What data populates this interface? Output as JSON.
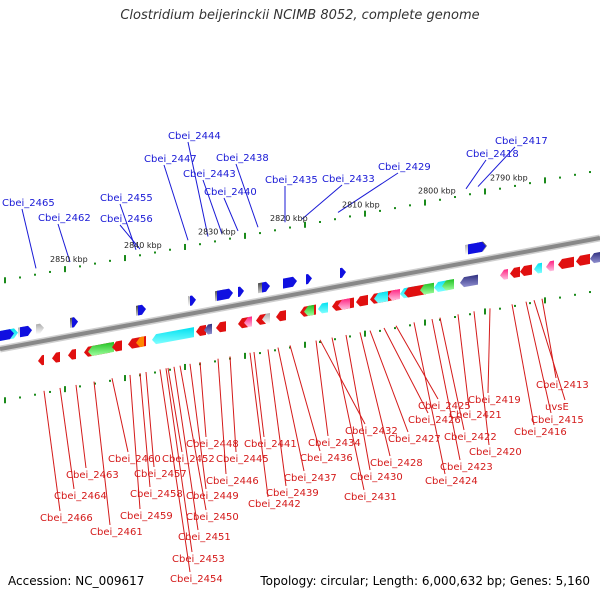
{
  "title": "Clostridium beijerinckii NCIMB 8052, complete genome",
  "footer": {
    "accession": "Accession: NC_009617",
    "topology": "Topology: circular; Length: 6,000,632 bp; Genes: 5,160"
  },
  "kbp_labels": [
    "2790 kbp",
    "2800 kbp",
    "2810 kbp",
    "2820 kbp",
    "2830 kbp",
    "2840 kbp",
    "2850 kbp"
  ],
  "top_labels": [
    "Cbei_2417",
    "Cbei_2418",
    "Cbei_2429",
    "Cbei_2433",
    "Cbei_2435",
    "Cbei_2438",
    "Cbei_2440",
    "Cbei_2443",
    "Cbei_2444",
    "Cbei_2447",
    "Cbei_2455",
    "Cbei_2456",
    "Cbei_2462",
    "Cbei_2465"
  ],
  "bottom_labels": [
    "Cbei_2413",
    "uvsE",
    "Cbei_2415",
    "Cbei_2416",
    "Cbei_2419",
    "Cbei_2420",
    "Cbei_2421",
    "Cbei_2422",
    "Cbei_2423",
    "Cbei_2424",
    "Cbei_2425",
    "Cbei_2426",
    "Cbei_2427",
    "Cbei_2428",
    "Cbei_2430",
    "Cbei_2431",
    "Cbei_2432",
    "Cbei_2434",
    "Cbei_2436",
    "Cbei_2437",
    "Cbei_2439",
    "Cbei_2441",
    "Cbei_2442",
    "Cbei_2445",
    "Cbei_2446",
    "Cbei_2448",
    "Cbei_2449",
    "Cbei_2450",
    "Cbei_2451",
    "Cbei_2452",
    "Cbei_2453",
    "Cbei_2454",
    "Cbei_2457",
    "Cbei_2458",
    "Cbei_2459",
    "Cbei_2460",
    "Cbei_2461",
    "Cbei_2463",
    "Cbei_2464",
    "Cbei_2466"
  ],
  "colors": {
    "forward_gene": "#1010e0",
    "reverse_gene": "#e01010",
    "backbone": "#888888",
    "tick": "#1a8a1a",
    "top_label": "#1a1ad6",
    "bottom_label": "#d41a1a"
  }
}
